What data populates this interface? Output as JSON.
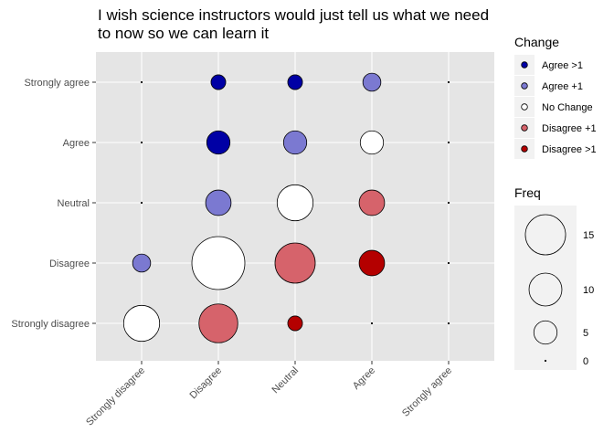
{
  "chart_data": {
    "type": "scatter",
    "title": "I wish science instructors would just tell us what we need\nto now so we can learn it",
    "xlabel": "",
    "ylabel": "",
    "x_categories": [
      "Strongly disagree",
      "Disagree",
      "Neutral",
      "Agree",
      "Strongly agree"
    ],
    "y_categories": [
      "Strongly disagree",
      "Disagree",
      "Neutral",
      "Agree",
      "Strongly agree"
    ],
    "grid": true,
    "points": [
      {
        "x": "Strongly disagree",
        "y": "Strongly agree",
        "freq": 0,
        "change": "Disagree +1"
      },
      {
        "x": "Disagree",
        "y": "Strongly agree",
        "freq": 2,
        "change": "Agree >1"
      },
      {
        "x": "Neutral",
        "y": "Strongly agree",
        "freq": 2,
        "change": "Agree >1"
      },
      {
        "x": "Agree",
        "y": "Strongly agree",
        "freq": 3,
        "change": "Agree +1"
      },
      {
        "x": "Strongly agree",
        "y": "Strongly agree",
        "freq": 0,
        "change": "No Change"
      },
      {
        "x": "Strongly disagree",
        "y": "Agree",
        "freq": 0,
        "change": "Disagree >1"
      },
      {
        "x": "Disagree",
        "y": "Agree",
        "freq": 5,
        "change": "Agree >1"
      },
      {
        "x": "Neutral",
        "y": "Agree",
        "freq": 5,
        "change": "Agree +1"
      },
      {
        "x": "Agree",
        "y": "Agree",
        "freq": 5,
        "change": "No Change"
      },
      {
        "x": "Strongly agree",
        "y": "Agree",
        "freq": 0,
        "change": "Disagree +1"
      },
      {
        "x": "Strongly disagree",
        "y": "Neutral",
        "freq": 0,
        "change": "Disagree >1"
      },
      {
        "x": "Disagree",
        "y": "Neutral",
        "freq": 6,
        "change": "Agree +1"
      },
      {
        "x": "Neutral",
        "y": "Neutral",
        "freq": 12,
        "change": "No Change"
      },
      {
        "x": "Agree",
        "y": "Neutral",
        "freq": 6,
        "change": "Disagree +1"
      },
      {
        "x": "Strongly agree",
        "y": "Neutral",
        "freq": 0,
        "change": "Disagree +1"
      },
      {
        "x": "Strongly disagree",
        "y": "Disagree",
        "freq": 3,
        "change": "Agree +1"
      },
      {
        "x": "Disagree",
        "y": "Disagree",
        "freq": 26,
        "change": "No Change"
      },
      {
        "x": "Neutral",
        "y": "Disagree",
        "freq": 15,
        "change": "Disagree +1"
      },
      {
        "x": "Agree",
        "y": "Disagree",
        "freq": 6,
        "change": "Disagree >1"
      },
      {
        "x": "Strongly agree",
        "y": "Disagree",
        "freq": 0,
        "change": "Disagree >1"
      },
      {
        "x": "Strongly disagree",
        "y": "Strongly disagree",
        "freq": 12,
        "change": "No Change"
      },
      {
        "x": "Disagree",
        "y": "Strongly disagree",
        "freq": 14,
        "change": "Disagree +1"
      },
      {
        "x": "Neutral",
        "y": "Strongly disagree",
        "freq": 2,
        "change": "Disagree >1"
      },
      {
        "x": "Agree",
        "y": "Strongly disagree",
        "freq": 0,
        "change": "Disagree >1"
      },
      {
        "x": "Strongly agree",
        "y": "Strongly disagree",
        "freq": 0,
        "change": "Disagree >1"
      }
    ],
    "legend_change": {
      "title": "Change",
      "entries": [
        {
          "label": "Agree >1",
          "color": "#0000a5"
        },
        {
          "label": "Agree +1",
          "color": "#7b79d1"
        },
        {
          "label": "No Change",
          "color": "#ffffff"
        },
        {
          "label": "Disagree +1",
          "color": "#d6636b"
        },
        {
          "label": "Disagree >1",
          "color": "#b40000"
        }
      ]
    },
    "legend_freq": {
      "title": "Freq",
      "entries": [
        15,
        10,
        5,
        0
      ]
    },
    "legend_placement": "right",
    "colors": {
      "panel": "#e5e5e5",
      "gridline": "#ffffff",
      "legend_bg": "#f2f2f2"
    }
  }
}
